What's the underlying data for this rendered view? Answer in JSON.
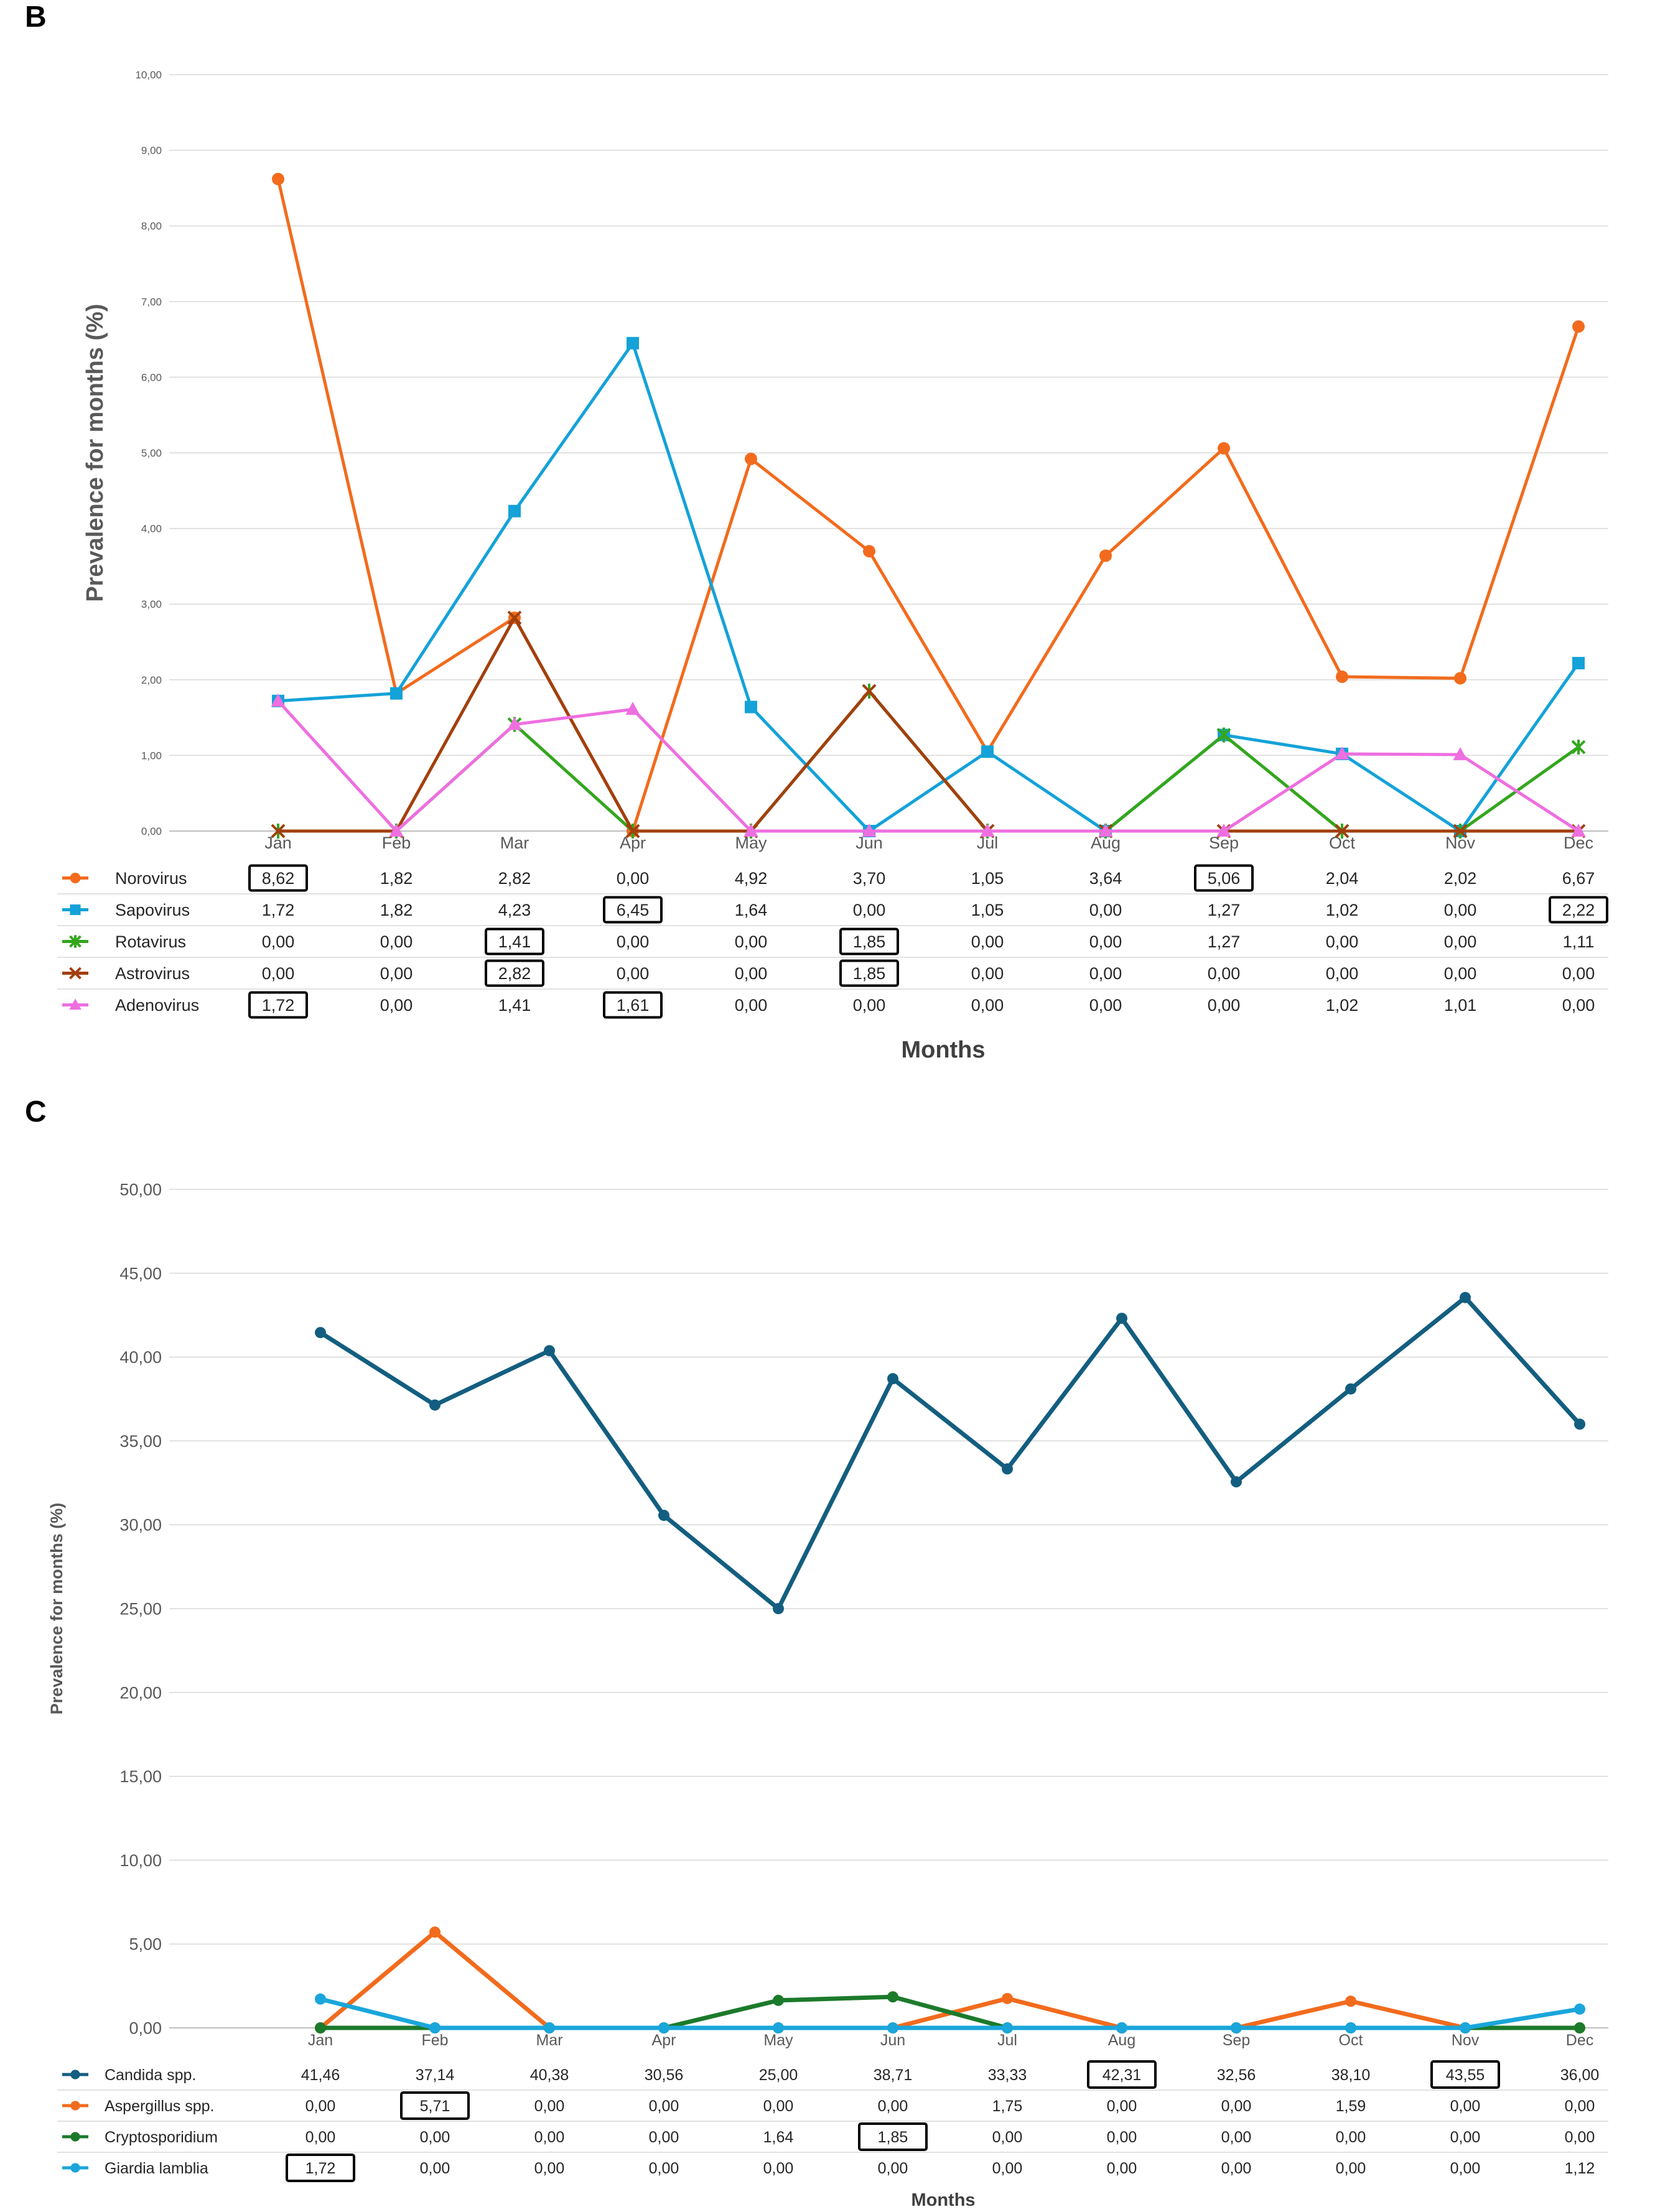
{
  "charts": [
    {
      "panel_label": "B",
      "chart_data": {
        "type": "line",
        "title": "",
        "xlabel": "Months",
        "ylabel": "Prevalence for months (%)",
        "ylim": [
          0,
          10
        ],
        "y_ticks": [
          "0,00",
          "1,00",
          "2,00",
          "3,00",
          "4,00",
          "5,00",
          "6,00",
          "7,00",
          "8,00",
          "9,00",
          "10,00"
        ],
        "grid": true,
        "legend_placement": "data table below plot",
        "categories": [
          "Jan",
          "Feb",
          "Mar",
          "Apr",
          "May",
          "Jun",
          "Jul",
          "Aug",
          "Sep",
          "Oct",
          "Nov",
          "Dec"
        ],
        "series": [
          {
            "name": "Norovirus",
            "color": "#F26B1D",
            "marker": "circle",
            "values": [
              8.62,
              1.82,
              2.82,
              0.0,
              4.92,
              3.7,
              1.05,
              3.64,
              5.06,
              2.04,
              2.02,
              6.67
            ],
            "table": [
              "8,62",
              "1,82",
              "2,82",
              "0,00",
              "4,92",
              "3,70",
              "1,05",
              "3,64",
              "5,06",
              "2,04",
              "2,02",
              "6,67"
            ],
            "boxed": [
              0,
              8
            ]
          },
          {
            "name": "Sapovirus",
            "color": "#14A2D8",
            "marker": "square",
            "values": [
              1.72,
              1.82,
              4.23,
              6.45,
              1.64,
              0.0,
              1.05,
              0.0,
              1.27,
              1.02,
              0.0,
              2.22
            ],
            "table": [
              "1,72",
              "1,82",
              "4,23",
              "6,45",
              "1,64",
              "0,00",
              "1,05",
              "0,00",
              "1,27",
              "1,02",
              "0,00",
              "2,22"
            ],
            "boxed": [
              3,
              11
            ]
          },
          {
            "name": "Rotavirus",
            "color": "#34A61E",
            "marker": "star",
            "values": [
              0.0,
              0.0,
              1.41,
              0.0,
              0.0,
              1.85,
              0.0,
              0.0,
              1.27,
              0.0,
              0.0,
              1.11
            ],
            "table": [
              "0,00",
              "0,00",
              "1,41",
              "0,00",
              "0,00",
              "1,85",
              "0,00",
              "0,00",
              "1,27",
              "0,00",
              "0,00",
              "1,11"
            ],
            "boxed": [
              2,
              5
            ]
          },
          {
            "name": "Astrovirus",
            "color": "#A2400E",
            "marker": "x",
            "values": [
              0.0,
              0.0,
              2.82,
              0.0,
              0.0,
              1.85,
              0.0,
              0.0,
              0.0,
              0.0,
              0.0,
              0.0
            ],
            "table": [
              "0,00",
              "0,00",
              "2,82",
              "0,00",
              "0,00",
              "1,85",
              "0,00",
              "0,00",
              "0,00",
              "0,00",
              "0,00",
              "0,00"
            ],
            "boxed": [
              2,
              5
            ]
          },
          {
            "name": "Adenovirus",
            "color": "#EE6FE0",
            "marker": "triangle",
            "values": [
              1.72,
              0.0,
              1.41,
              1.61,
              0.0,
              0.0,
              0.0,
              0.0,
              0.0,
              1.02,
              1.01,
              0.0
            ],
            "table": [
              "1,72",
              "0,00",
              "1,41",
              "1,61",
              "0,00",
              "0,00",
              "0,00",
              "0,00",
              "0,00",
              "1,02",
              "1,01",
              "0,00"
            ],
            "boxed": [
              0,
              3
            ]
          }
        ]
      }
    },
    {
      "panel_label": "C",
      "chart_data": {
        "type": "line",
        "title": "",
        "xlabel": "Months",
        "ylabel": "Prevalence for months (%)",
        "ylim": [
          0,
          50
        ],
        "y_ticks": [
          "0,00",
          "5,00",
          "10,00",
          "15,00",
          "20,00",
          "25,00",
          "30,00",
          "35,00",
          "40,00",
          "45,00",
          "50,00"
        ],
        "grid": true,
        "legend_placement": "data table below plot",
        "categories": [
          "Jan",
          "Feb",
          "Mar",
          "Apr",
          "May",
          "Jun",
          "Jul",
          "Aug",
          "Sep",
          "Oct",
          "Nov",
          "Dec"
        ],
        "series": [
          {
            "name": "Candida spp.",
            "color": "#135E80",
            "marker": "circle",
            "values": [
              41.46,
              37.14,
              40.38,
              30.56,
              25.0,
              38.71,
              33.33,
              42.31,
              32.56,
              38.1,
              43.55,
              36.0
            ],
            "table": [
              "41,46",
              "37,14",
              "40,38",
              "30,56",
              "25,00",
              "38,71",
              "33,33",
              "42,31",
              "32,56",
              "38,10",
              "43,55",
              "36,00"
            ],
            "boxed": [
              7,
              10
            ]
          },
          {
            "name": "Aspergillus spp.",
            "color": "#F26B1D",
            "marker": "circle",
            "values": [
              0.0,
              5.71,
              0.0,
              0.0,
              0.0,
              0.0,
              1.75,
              0.0,
              0.0,
              1.59,
              0.0,
              0.0
            ],
            "table": [
              "0,00",
              "5,71",
              "0,00",
              "0,00",
              "0,00",
              "0,00",
              "1,75",
              "0,00",
              "0,00",
              "1,59",
              "0,00",
              "0,00"
            ],
            "boxed": [
              1
            ]
          },
          {
            "name": "Cryptosporidium",
            "color": "#1C7A2B",
            "marker": "circle",
            "values": [
              0.0,
              0.0,
              0.0,
              0.0,
              1.64,
              1.85,
              0.0,
              0.0,
              0.0,
              0.0,
              0.0,
              0.0
            ],
            "table": [
              "0,00",
              "0,00",
              "0,00",
              "0,00",
              "1,64",
              "1,85",
              "0,00",
              "0,00",
              "0,00",
              "0,00",
              "0,00",
              "0,00"
            ],
            "boxed": [
              5
            ]
          },
          {
            "name": "Giardia lamblia",
            "color": "#1AA6DB",
            "marker": "circle",
            "values": [
              1.72,
              0.0,
              0.0,
              0.0,
              0.0,
              0.0,
              0.0,
              0.0,
              0.0,
              0.0,
              0.0,
              1.12
            ],
            "table": [
              "1,72",
              "0,00",
              "0,00",
              "0,00",
              "0,00",
              "0,00",
              "0,00",
              "0,00",
              "0,00",
              "0,00",
              "0,00",
              "1,12"
            ],
            "boxed": [
              0
            ]
          }
        ]
      }
    }
  ]
}
